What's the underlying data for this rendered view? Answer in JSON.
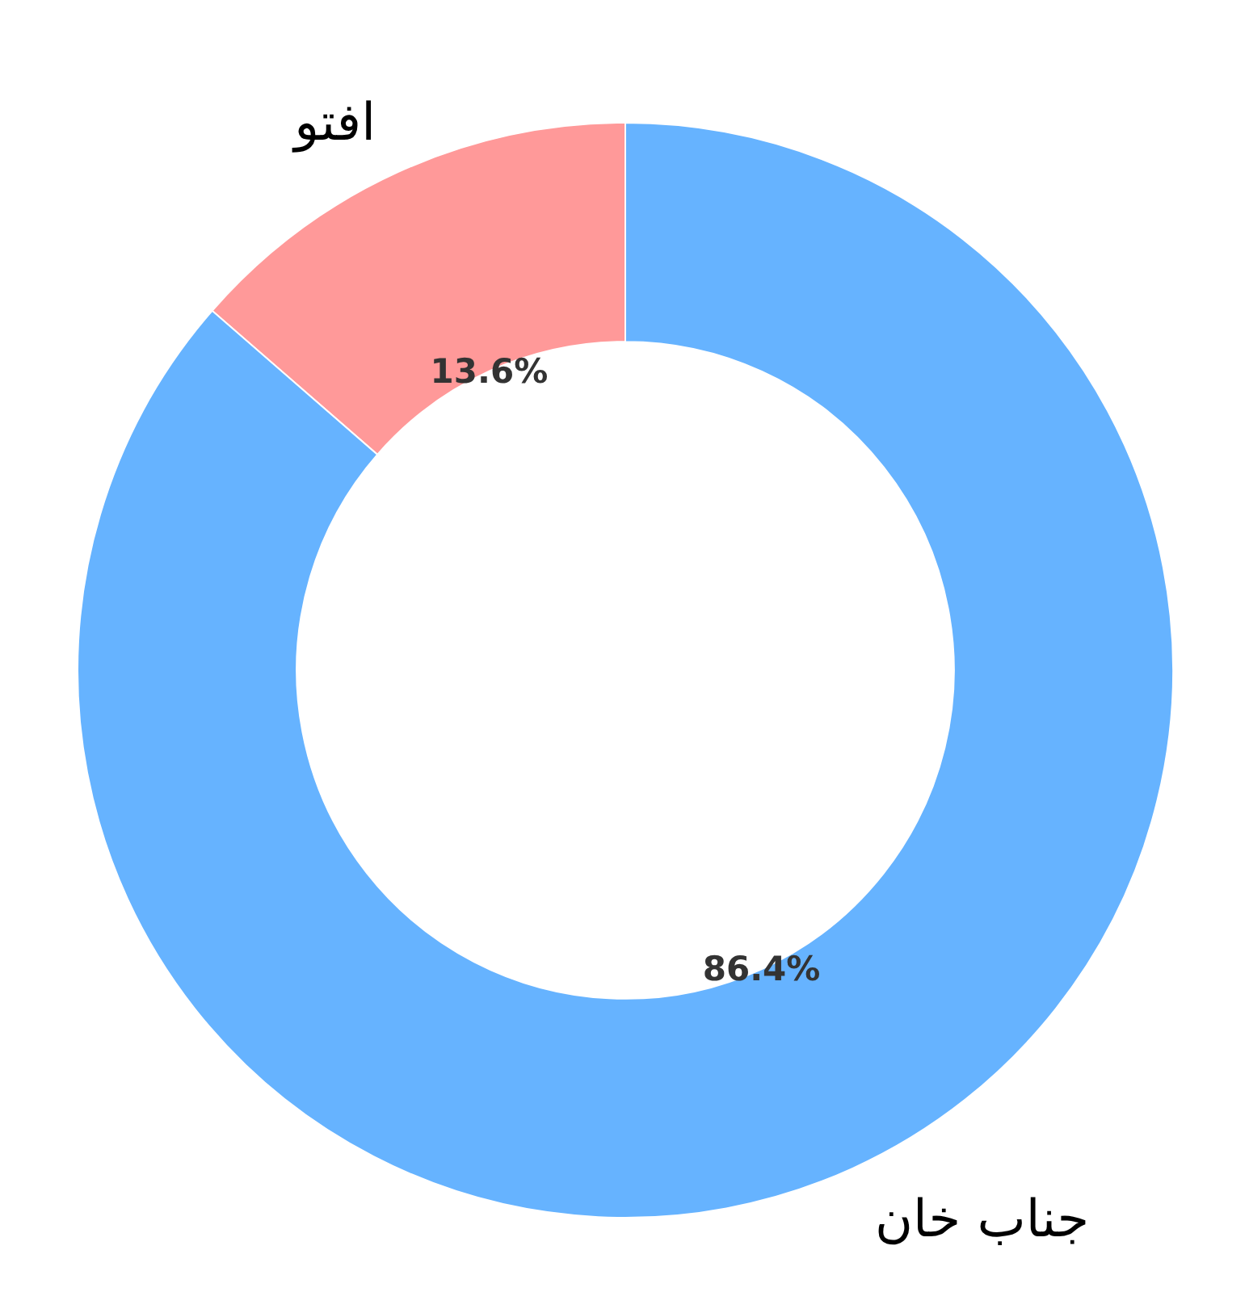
{
  "chart_data": {
    "type": "donut",
    "categories": [
      "افتو",
      "جناب خان"
    ],
    "values": [
      13.6,
      86.4
    ],
    "colors": [
      "#ff9999",
      "#66b3ff"
    ],
    "value_labels": [
      "13.6%",
      "86.4%"
    ]
  }
}
